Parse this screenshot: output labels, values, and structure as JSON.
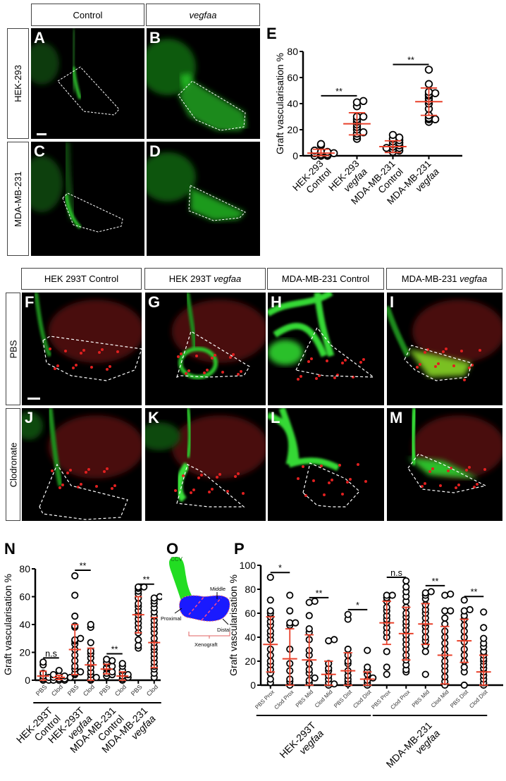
{
  "top_grid": {
    "col_headers": [
      "Control",
      "vegfaa"
    ],
    "row_labels": [
      "HEK-293",
      "MDA-MB-231"
    ],
    "panels": [
      "A",
      "B",
      "C",
      "D"
    ]
  },
  "mid_grid": {
    "col_headers": [
      {
        "plain": "HEK 293T Control",
        "italic": ""
      },
      {
        "plain": "HEK 293T ",
        "italic": "vegfaa"
      },
      {
        "plain": "MDA-MB-231 Control",
        "italic": ""
      },
      {
        "plain": "MDA-MB-231 ",
        "italic": "vegfaa"
      }
    ],
    "row_labels": [
      "PBS",
      "Clodronate"
    ],
    "panels": [
      "F",
      "G",
      "H",
      "I",
      "J",
      "K",
      "L",
      "M"
    ]
  },
  "diagram_O": {
    "letter": "O",
    "labels": {
      "ccv": "CCV",
      "middle": "Middle",
      "proximal": "Proximal",
      "distal": "Distal",
      "xenograft": "Xenograft"
    },
    "colors": {
      "vessel": "#22dd22",
      "graft": "#1a1aff",
      "dash": "#ff5a5a",
      "bracket": "#e06060"
    }
  },
  "chart_data": [
    {
      "letter": "E",
      "type": "scatter",
      "title": "",
      "ylabel": "Graft vascularisation %",
      "ylim": [
        0,
        80
      ],
      "yticks": [
        0,
        20,
        40,
        60,
        80
      ],
      "categories": [
        [
          "HEK-293",
          "Control"
        ],
        [
          "HEK-293",
          "vegfaa"
        ],
        [
          "MDA-MB-231",
          "Control"
        ],
        [
          "MDA-MB-231",
          "vegfaa"
        ]
      ],
      "means": [
        2,
        24.5,
        7,
        41.5
      ],
      "sd": [
        3,
        8.5,
        4.5,
        10.5
      ],
      "points": [
        [
          0,
          0,
          0,
          1,
          1,
          2,
          2,
          3,
          3,
          4,
          8,
          9
        ],
        [
          13,
          15,
          17,
          18,
          20,
          22,
          24,
          26,
          28,
          30,
          30,
          38,
          41,
          42
        ],
        [
          3,
          4,
          5,
          6,
          6,
          7,
          8,
          9,
          10,
          11,
          12,
          13,
          14,
          16
        ],
        [
          26,
          28,
          28,
          29,
          31,
          36,
          40,
          42,
          44,
          46,
          47,
          48,
          49,
          55,
          66
        ]
      ],
      "significance": [
        {
          "from": 0,
          "to": 1,
          "label": "**",
          "y": 46
        },
        {
          "from": 2,
          "to": 3,
          "label": "**",
          "y": 70
        }
      ],
      "colors": {
        "points": "#000000",
        "error": "#e8402a"
      }
    },
    {
      "letter": "N",
      "type": "scatter",
      "ylabel": "Graft vascularisation %",
      "ylim": [
        0,
        80
      ],
      "yticks": [
        0,
        20,
        40,
        60,
        80
      ],
      "categories": [
        "PBS",
        "Clod",
        "PBS",
        "Clod",
        "PBS",
        "Clod",
        "PBS",
        "Clod"
      ],
      "groups": [
        [
          "HEK-293T",
          "Control"
        ],
        [
          "HEK-293T",
          "vegfaa"
        ],
        [
          "MDA-MB-231",
          "Control"
        ],
        [
          "MDA-MB-231",
          "vegfaa"
        ]
      ],
      "means": [
        3,
        2,
        22,
        11,
        8,
        3,
        47,
        27
      ],
      "sd": [
        3.5,
        1.5,
        18,
        12,
        3.5,
        3,
        13,
        18
      ],
      "points": [
        [
          0,
          0,
          1,
          2,
          3,
          5,
          11,
          13
        ],
        [
          0,
          0,
          0,
          1,
          1,
          2,
          2,
          3,
          3,
          4,
          7
        ],
        [
          4,
          5,
          6,
          8,
          10,
          14,
          18,
          22,
          26,
          28,
          29,
          30,
          38,
          39,
          46,
          61,
          75
        ],
        [
          0,
          1,
          2,
          4,
          6,
          9,
          12,
          16,
          19,
          21,
          27,
          38,
          40
        ],
        [
          3,
          4,
          5,
          6,
          8,
          9,
          10,
          12,
          13,
          14,
          15
        ],
        [
          0,
          1,
          2,
          3,
          4,
          5,
          7,
          10,
          12
        ],
        [
          23,
          25,
          29,
          34,
          38,
          41,
          44,
          47,
          50,
          53,
          55,
          59,
          62,
          64,
          66,
          67,
          67
        ],
        [
          2,
          5,
          8,
          10,
          13,
          16,
          19,
          22,
          24,
          27,
          30,
          34,
          37,
          40,
          43,
          46,
          49,
          52,
          55,
          57,
          59,
          60
        ]
      ],
      "significance": [
        {
          "from": 0,
          "to": 1,
          "label": "n.s",
          "y": 16
        },
        {
          "from": 2,
          "to": 3,
          "label": "**",
          "y": 79
        },
        {
          "from": 4,
          "to": 5,
          "label": "**",
          "y": 19
        },
        {
          "from": 6,
          "to": 7,
          "label": "**",
          "y": 69
        }
      ],
      "colors": {
        "points": "#000000",
        "error": "#e8402a"
      }
    },
    {
      "letter": "P",
      "type": "scatter",
      "ylabel": "Graft vascularisation %",
      "ylim": [
        0,
        100
      ],
      "yticks": [
        0,
        20,
        40,
        60,
        80,
        100
      ],
      "categories": [
        "PBS Prox",
        "Clod Prox",
        "PBS Mid",
        "Clod Mid",
        "PBS Dist",
        "Clod Dist",
        "PBS Prox",
        "Clod Prox",
        "PBS Mid",
        "Clod Mid",
        "PBS Dist",
        "Clod Dist"
      ],
      "groups": [
        [
          "HEK-293T",
          "vegfaa"
        ],
        [
          "MDA-MB-231",
          "vegfaa"
        ]
      ],
      "means": [
        34,
        22,
        21,
        9,
        12,
        5,
        52,
        43,
        51,
        25,
        37,
        11
      ],
      "sd": [
        23,
        25,
        21,
        11,
        15,
        6,
        18,
        22,
        17,
        24,
        18,
        14
      ],
      "points": [
        [
          2,
          5,
          10,
          13,
          17,
          20,
          25,
          30,
          38,
          42,
          45,
          50,
          53,
          57,
          60,
          62,
          71,
          90
        ],
        [
          0,
          3,
          5,
          12,
          18,
          30,
          50,
          52,
          52,
          62,
          75
        ],
        [
          2,
          4,
          6,
          10,
          13,
          18,
          25,
          29,
          38,
          44,
          47,
          58,
          69,
          70
        ],
        [
          0,
          1,
          2,
          5,
          8,
          12,
          14,
          18,
          37,
          38
        ],
        [
          1,
          3,
          5,
          8,
          12,
          18,
          20,
          25,
          30,
          55,
          59
        ],
        [
          0,
          2,
          4,
          6,
          9,
          12,
          15,
          29
        ],
        [
          9,
          15,
          28,
          40,
          44,
          48,
          52,
          55,
          58,
          62,
          65,
          70,
          73,
          75,
          75
        ],
        [
          11,
          13,
          17,
          21,
          25,
          30,
          34,
          38,
          42,
          46,
          50,
          53,
          57,
          60,
          65,
          70,
          74,
          78,
          82,
          87
        ],
        [
          9,
          28,
          33,
          37,
          40,
          45,
          49,
          52,
          56,
          60,
          63,
          67,
          72,
          75,
          77,
          78
        ],
        [
          0,
          3,
          7,
          12,
          16,
          20,
          25,
          30,
          35,
          40,
          45,
          51,
          56,
          62,
          62,
          75,
          76
        ],
        [
          0,
          11,
          15,
          20,
          25,
          30,
          36,
          40,
          45,
          50,
          55,
          58,
          62,
          63,
          71
        ],
        [
          0,
          2,
          5,
          8,
          11,
          14,
          17,
          20,
          22,
          25,
          28,
          32,
          35,
          39,
          48,
          61
        ]
      ],
      "significance": [
        {
          "from": 0,
          "to": 1,
          "label": "*",
          "y": 94
        },
        {
          "from": 2,
          "to": 3,
          "label": "**",
          "y": 73
        },
        {
          "from": 4,
          "to": 5,
          "label": "*",
          "y": 63
        },
        {
          "from": 6,
          "to": 7,
          "label": "n.s",
          "y": 90
        },
        {
          "from": 8,
          "to": 9,
          "label": "**",
          "y": 83
        },
        {
          "from": 10,
          "to": 11,
          "label": "**",
          "y": 74
        }
      ],
      "colors": {
        "points": "#000000",
        "error": "#e8402a"
      }
    }
  ]
}
